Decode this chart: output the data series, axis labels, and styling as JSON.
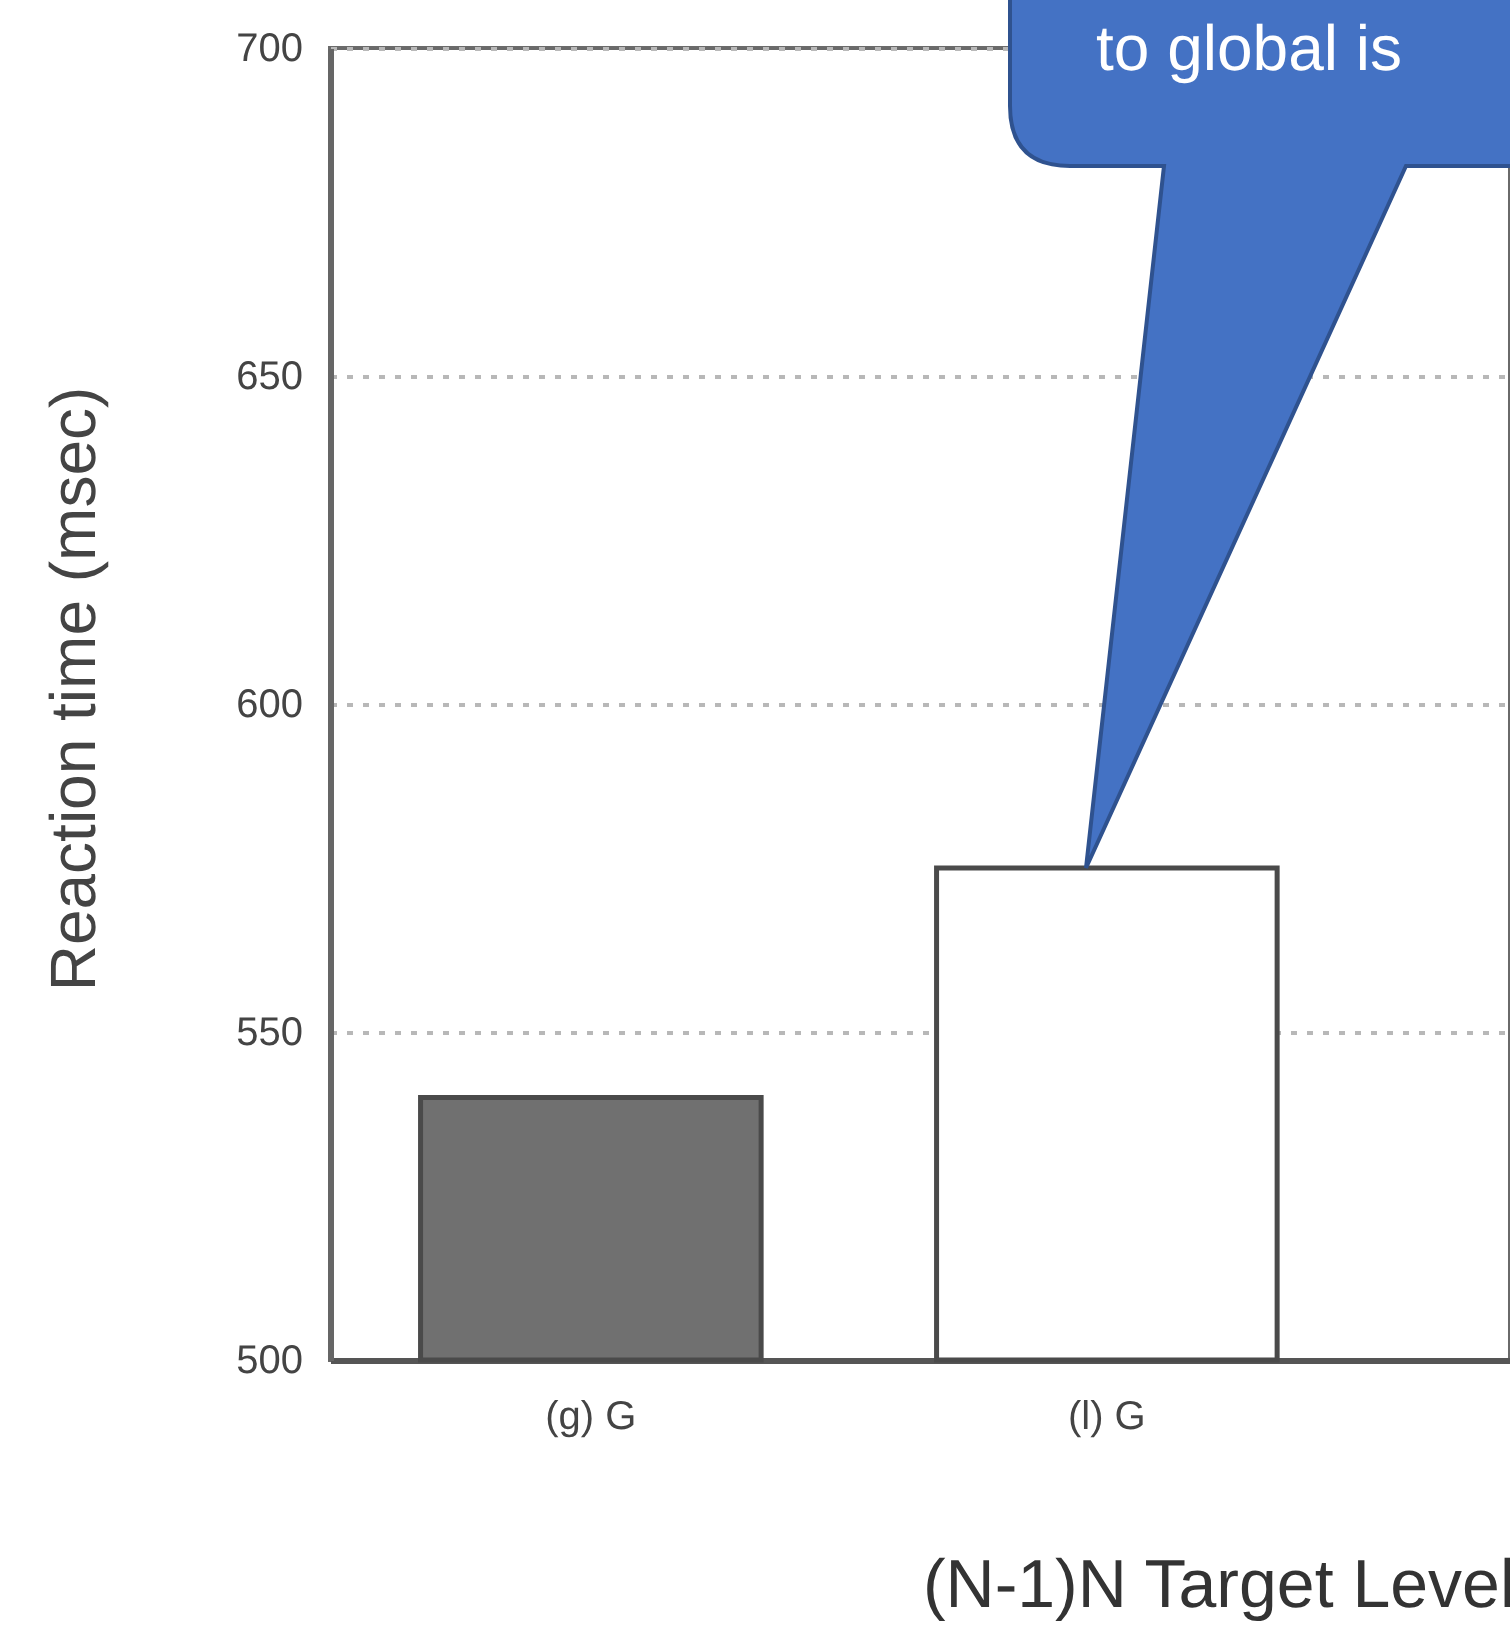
{
  "chart_data": {
    "type": "bar",
    "ylabel": "Reaction time (msec)",
    "xlabel": "(N-1)N Target Level",
    "categories": [
      "(g) G",
      "(l) G"
    ],
    "values": [
      540,
      575
    ],
    "colors": [
      "#707070",
      "#ffffff"
    ],
    "ylim": [
      500,
      700
    ],
    "yticks": [
      500,
      550,
      600,
      650,
      700
    ],
    "grid": "y",
    "annotations": [
      "to global is"
    ]
  }
}
